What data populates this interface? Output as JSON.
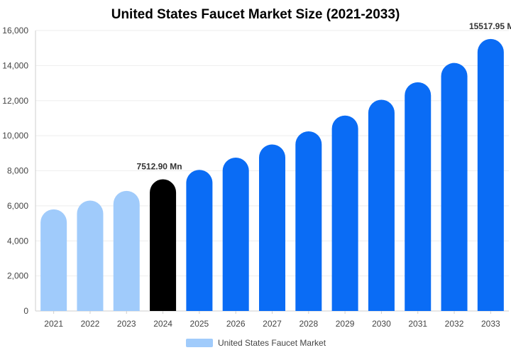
{
  "chart_data": {
    "type": "bar",
    "title": "United States Faucet Market Size (2021-2033)",
    "xlabel": "",
    "ylabel": "",
    "categories": [
      "2021",
      "2022",
      "2023",
      "2024",
      "2025",
      "2026",
      "2027",
      "2028",
      "2029",
      "2030",
      "2031",
      "2032",
      "2033"
    ],
    "series": [
      {
        "name": "United States Faucet Market",
        "values": [
          5800,
          6300,
          6850,
          7512.9,
          8050,
          8750,
          9500,
          10250,
          11150,
          12050,
          13050,
          14150,
          15517.95
        ]
      }
    ],
    "ylim": [
      0,
      16000
    ],
    "yticks": [
      0,
      2000,
      4000,
      6000,
      8000,
      10000,
      12000,
      14000,
      16000
    ],
    "ytick_labels": [
      "0",
      "2,000",
      "4,000",
      "6,000",
      "8,000",
      "10,000",
      "12,000",
      "14,000",
      "16,000"
    ],
    "data_labels": [
      {
        "category": "2024",
        "text": "7512.90 Mn"
      },
      {
        "category": "2033",
        "text": "15517.95 M"
      }
    ],
    "bar_colors": {
      "historical": "#a0cbfb",
      "current": "#000000",
      "forecast": "#0a6cf5"
    },
    "historical_categories": [
      "2021",
      "2022",
      "2023"
    ],
    "current_category": "2024",
    "grid": true,
    "legend_position": "bottom-center",
    "legend_color": "#a0cbfb"
  }
}
